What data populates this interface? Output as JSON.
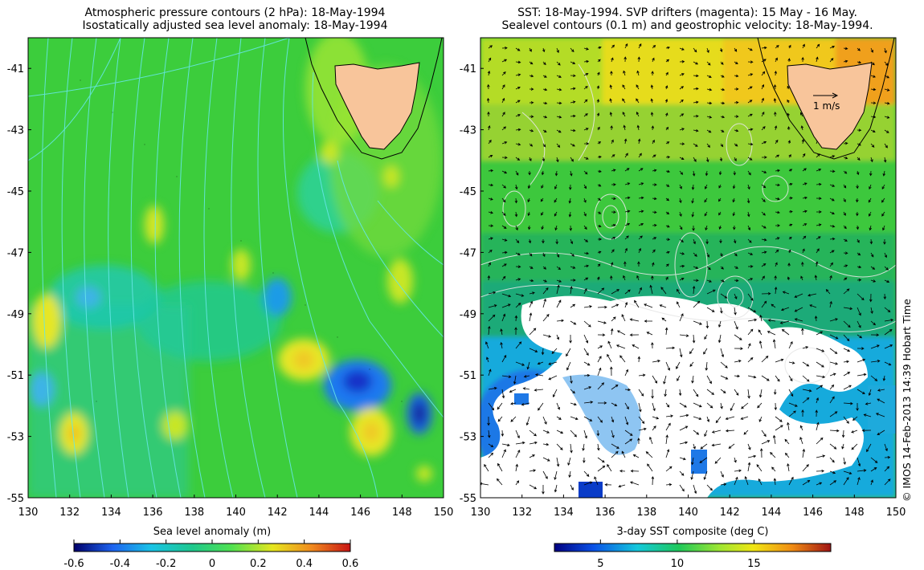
{
  "left_panel": {
    "title_line1": "Atmospheric pressure contours (2 hPa): 18-May-1994",
    "title_line2": "Isostatically adjusted sea level anomaly: 18-May-1994",
    "colorbar": {
      "label": "Sea level anomaly (m)",
      "ticks": [
        "-0.6",
        "-0.4",
        "-0.2",
        "0",
        "0.2",
        "0.4",
        "0.6"
      ],
      "range": [
        -0.6,
        0.6
      ],
      "colors": [
        "#00006a",
        "#1e78ff",
        "#19c3e6",
        "#1ec88c",
        "#50e150",
        "#e6e61e",
        "#f08a1e",
        "#c81414"
      ]
    }
  },
  "right_panel": {
    "title_line1": "SST: 18-May-1994. SVP drifters (magenta): 15 May - 16 May.",
    "title_line2": "Sealevel contours (0.1 m) and geostrophic velocity: 18-May-1994.",
    "velocity_scale_label": "1 m/s",
    "colorbar": {
      "label": "3-day SST composite (deg C)",
      "ticks": [
        "5",
        "10",
        "15"
      ],
      "range": [
        2,
        20
      ],
      "colors": [
        "#000080",
        "#0a50e6",
        "#14c8dc",
        "#1ec85a",
        "#a0e632",
        "#f0e614",
        "#f08c14",
        "#a01414"
      ]
    }
  },
  "axes": {
    "x_ticks": [
      "130",
      "132",
      "134",
      "136",
      "138",
      "140",
      "142",
      "144",
      "146",
      "148",
      "150"
    ],
    "y_ticks": [
      "-41",
      "-43",
      "-45",
      "-47",
      "-49",
      "-51",
      "-53",
      "-55"
    ],
    "lon_range": [
      130,
      150
    ],
    "lat_range": [
      -55,
      -40
    ]
  },
  "credit": "© IMOS 14-Feb-2013 14:39 Hobart Time",
  "colors": {
    "land": "#f8c59b",
    "pressure_contour": "#66e6e6",
    "sealevel_contour": "#e6e6e6",
    "no_data": "#ffffff"
  }
}
